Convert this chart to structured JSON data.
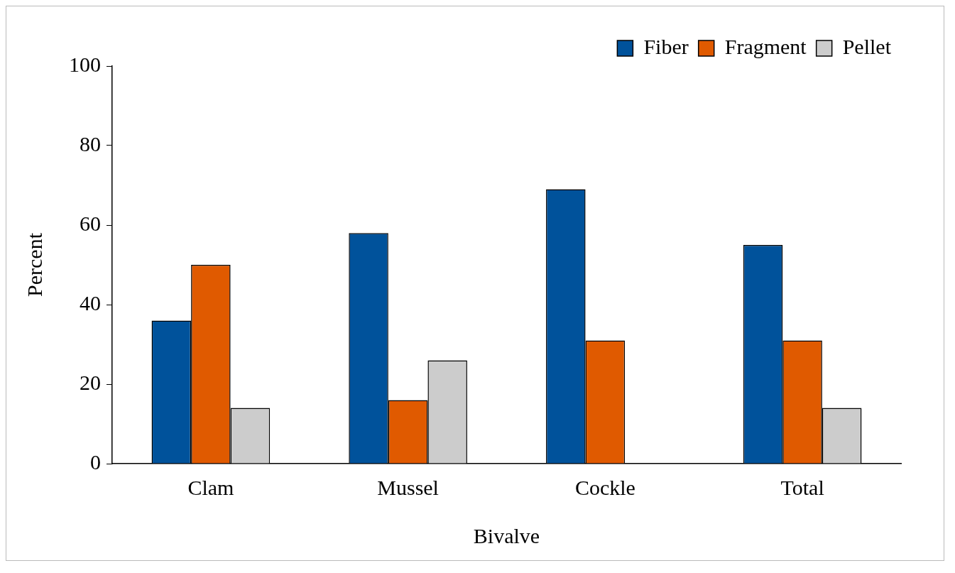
{
  "chart_data": {
    "type": "bar",
    "xlabel": "Bivalve",
    "ylabel": "Percent",
    "categories": [
      "Clam",
      "Mussel",
      "Cockle",
      "Total"
    ],
    "series": [
      {
        "name": "Fiber",
        "color": "#00529b",
        "values": [
          36,
          58,
          69,
          55
        ]
      },
      {
        "name": "Fragment",
        "color": "#e05a00",
        "values": [
          50,
          16,
          31,
          31
        ]
      },
      {
        "name": "Pellet",
        "color": "#cccccc",
        "values": [
          14,
          26,
          null,
          14
        ]
      }
    ],
    "ylim": [
      0,
      100
    ],
    "yticks": [
      0,
      20,
      40,
      60,
      80,
      100
    ],
    "grid": false,
    "legend": "top right"
  }
}
